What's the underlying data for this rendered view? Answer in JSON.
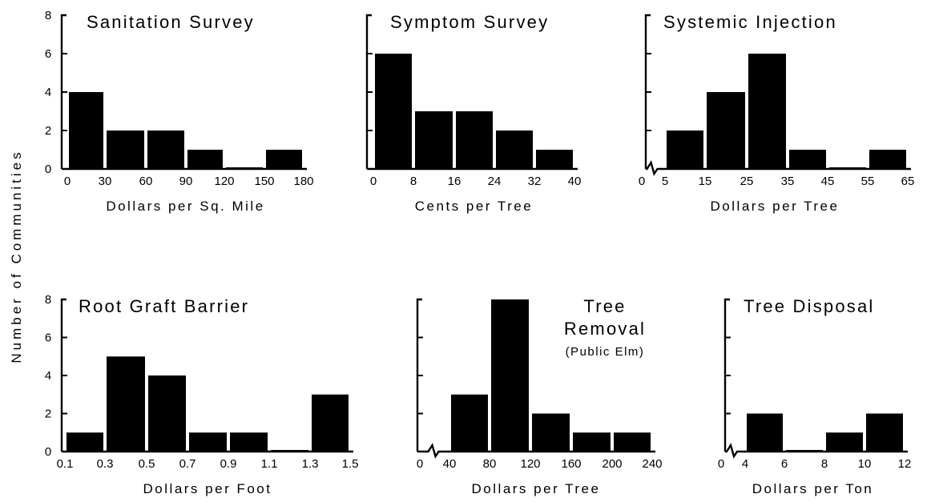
{
  "figure": {
    "ylabel": "Number of Communities"
  },
  "chart_data": [
    {
      "type": "bar",
      "title": "Sanitation Survey",
      "xlabel": "Dollars per Sq. Mile",
      "x_ticks": [
        "0",
        "30",
        "60",
        "90",
        "120",
        "150",
        "180"
      ],
      "y_ticks": [
        "0",
        "2",
        "4",
        "6",
        "8"
      ],
      "ylim": [
        0,
        8
      ],
      "axis_break": false,
      "categories": [
        "0-30",
        "30-60",
        "60-90",
        "90-120",
        "120-150",
        "150-180"
      ],
      "values": [
        4,
        2,
        2,
        1,
        0,
        1
      ]
    },
    {
      "type": "bar",
      "title": "Symptom Survey",
      "xlabel": "Cents per Tree",
      "x_ticks": [
        "0",
        "8",
        "16",
        "24",
        "32",
        "40"
      ],
      "y_ticks": [],
      "ylim": [
        0,
        8
      ],
      "axis_break": false,
      "categories": [
        "0-8",
        "8-16",
        "16-24",
        "24-32",
        "32-40"
      ],
      "values": [
        6,
        3,
        3,
        2,
        1
      ]
    },
    {
      "type": "bar",
      "title": "Systemic Injection",
      "xlabel": "Dollars per Tree",
      "x_ticks": [
        "0",
        "5",
        "15",
        "25",
        "35",
        "45",
        "55",
        "65"
      ],
      "y_ticks": [],
      "ylim": [
        0,
        8
      ],
      "axis_break": true,
      "categories": [
        "5-15",
        "15-25",
        "25-35",
        "35-45",
        "45-55",
        "55-65"
      ],
      "values": [
        2,
        4,
        6,
        1,
        0,
        1
      ]
    },
    {
      "type": "bar",
      "title": "Root Graft Barrier",
      "xlabel": "Dollars per Foot",
      "x_ticks": [
        "0.1",
        "0.3",
        "0.5",
        "0.7",
        "0.9",
        "1.1",
        "1.3",
        "1.5"
      ],
      "y_ticks": [
        "0",
        "2",
        "4",
        "6",
        "8"
      ],
      "ylim": [
        0,
        8
      ],
      "axis_break": false,
      "categories": [
        "0.1-0.3",
        "0.3-0.5",
        "0.5-0.7",
        "0.7-0.9",
        "0.9-1.1",
        "1.1-1.3",
        "1.3-1.5"
      ],
      "values": [
        1,
        5,
        4,
        1,
        1,
        0,
        3
      ]
    },
    {
      "type": "bar",
      "title": "Tree",
      "title_line2": "Removal",
      "subtitle": "(Public Elm)",
      "xlabel": "Dollars per Tree",
      "x_ticks": [
        "0",
        "40",
        "80",
        "120",
        "160",
        "200",
        "240"
      ],
      "y_ticks": [],
      "ylim": [
        0,
        8
      ],
      "axis_break": true,
      "categories": [
        "40-80",
        "80-120",
        "120-160",
        "160-200",
        "200-240"
      ],
      "values": [
        3,
        8,
        2,
        1,
        1
      ]
    },
    {
      "type": "bar",
      "title": "Tree Disposal",
      "xlabel": "Dollars per Ton",
      "x_ticks": [
        "0",
        "4",
        "6",
        "8",
        "10",
        "12"
      ],
      "y_ticks": [],
      "ylim": [
        0,
        8
      ],
      "axis_break": true,
      "categories": [
        "4-6",
        "6-8",
        "8-10",
        "10-12"
      ],
      "values": [
        2,
        0,
        1,
        2
      ]
    }
  ]
}
